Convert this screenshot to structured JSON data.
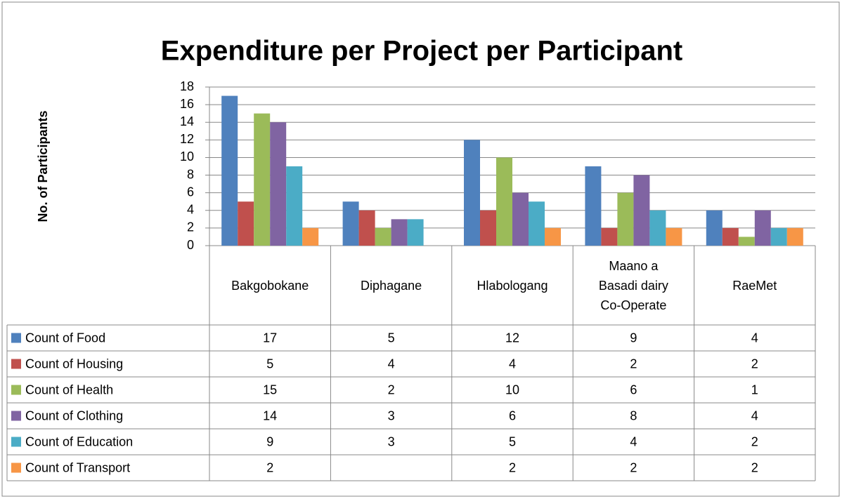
{
  "chart_data": {
    "type": "bar",
    "title": "Expenditure per Project per Participant",
    "y_label": "No. of Participants",
    "categories": [
      "Bakgobokane",
      "Diphagane",
      "Hlabologang",
      "Maano a Basadi dairy Co-Operate",
      "RaeMet"
    ],
    "series": [
      {
        "name": "Count of Food",
        "color": "#4f81bd",
        "values": [
          17,
          5,
          12,
          9,
          4
        ]
      },
      {
        "name": "Count of Housing",
        "color": "#c0504d",
        "values": [
          5,
          4,
          4,
          2,
          2
        ]
      },
      {
        "name": "Count of Health",
        "color": "#9bbb59",
        "values": [
          15,
          2,
          10,
          6,
          1
        ]
      },
      {
        "name": "Count of Clothing",
        "color": "#8064a2",
        "values": [
          14,
          3,
          6,
          8,
          4
        ]
      },
      {
        "name": "Count of Education",
        "color": "#4bacc6",
        "values": [
          9,
          3,
          5,
          4,
          2
        ]
      },
      {
        "name": "Count of Transport",
        "color": "#f79646",
        "values": [
          2,
          null,
          2,
          2,
          2
        ]
      }
    ],
    "ylim": [
      0,
      18
    ],
    "yticks": [
      0,
      2,
      4,
      6,
      8,
      10,
      12,
      14,
      16,
      18
    ],
    "grid": true,
    "data_table": true
  }
}
